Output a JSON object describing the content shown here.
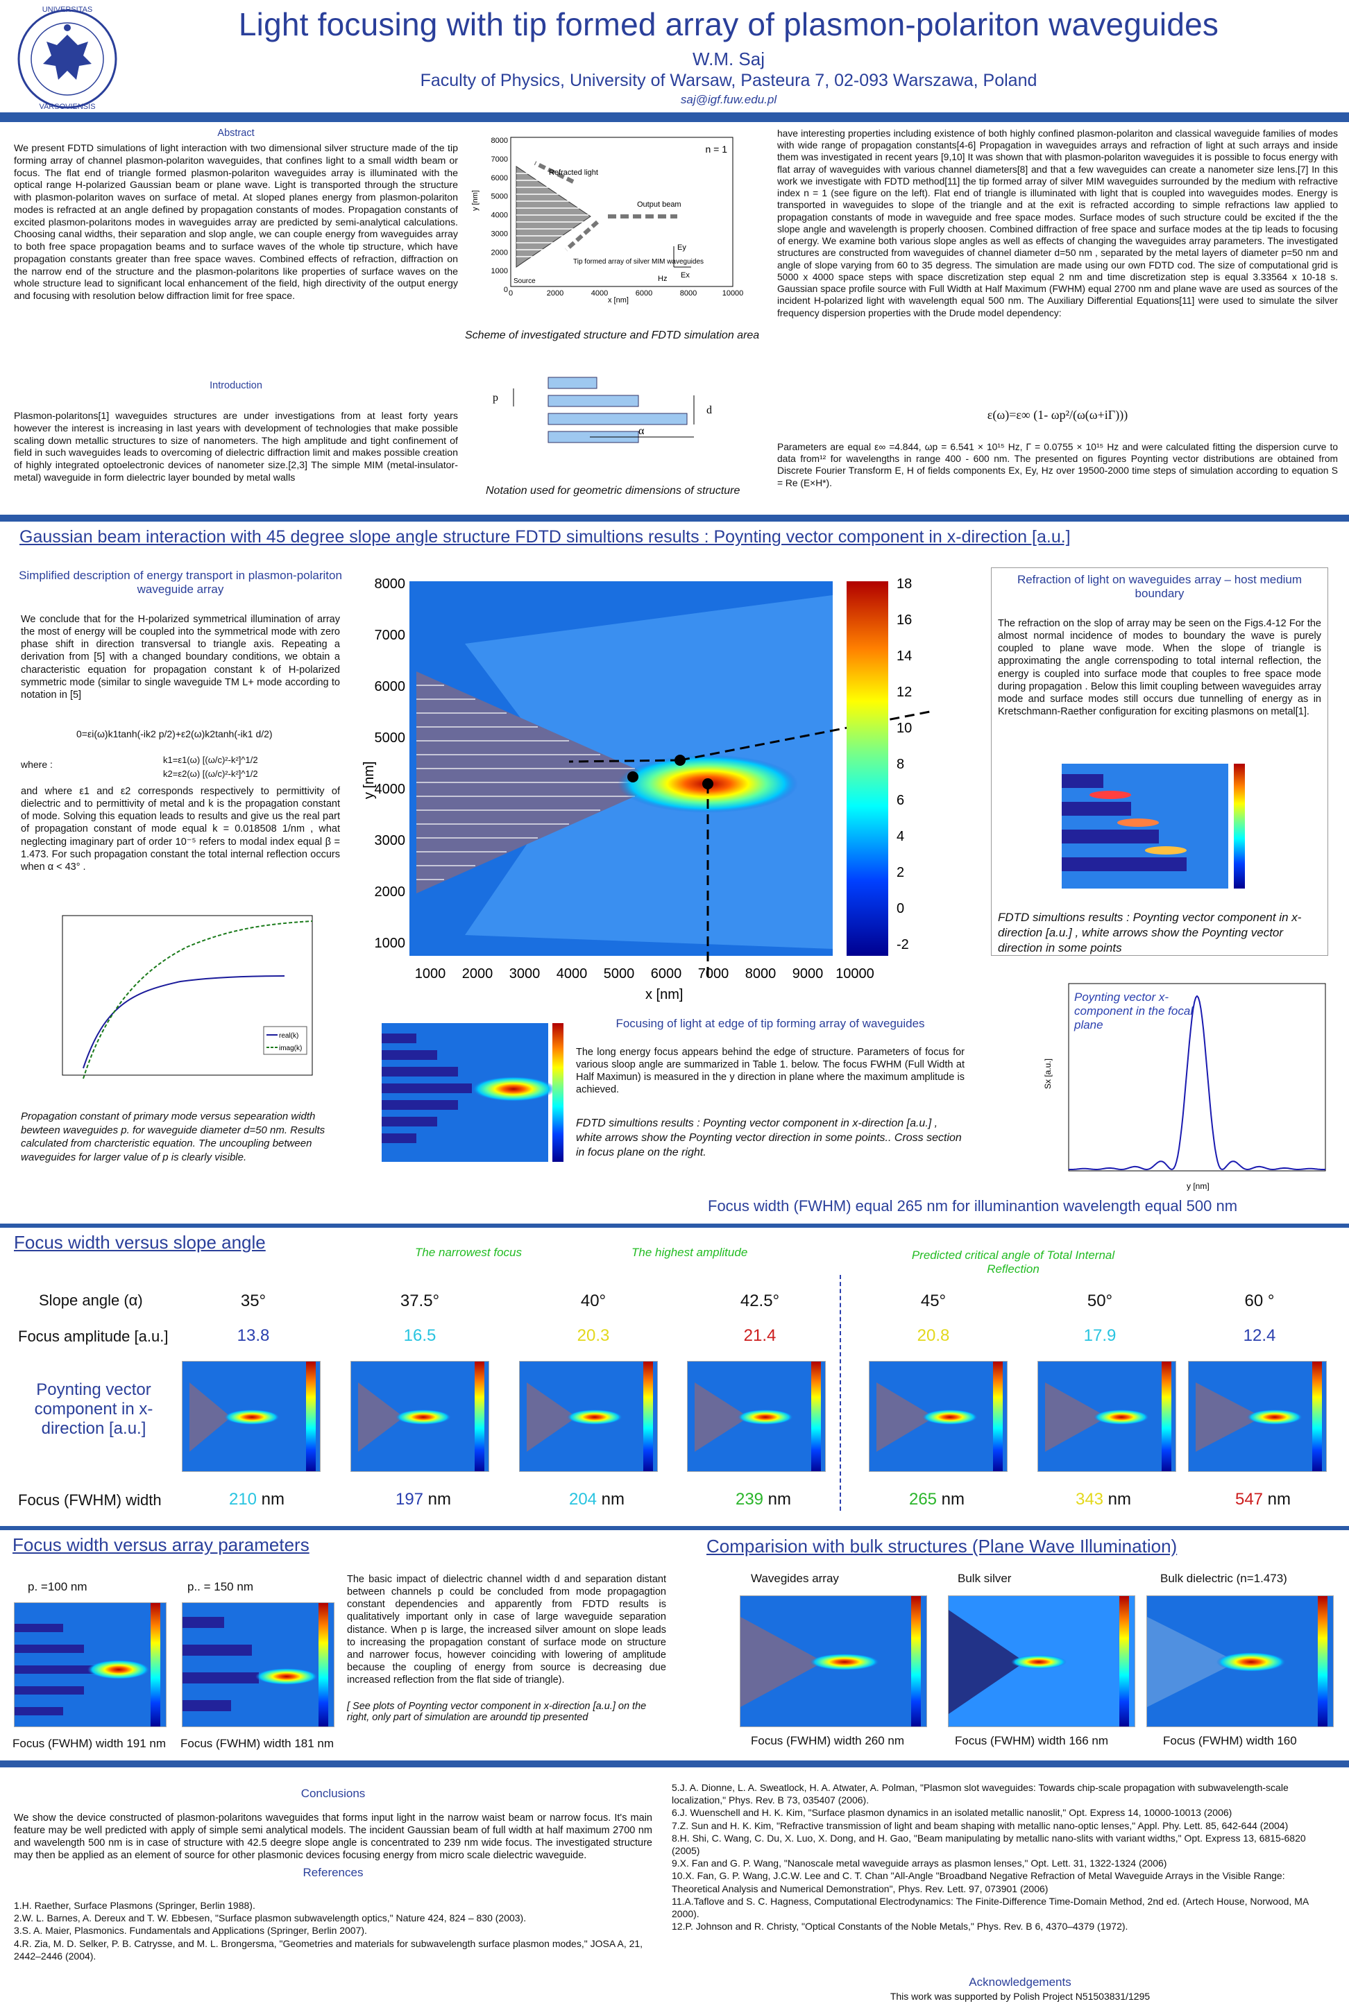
{
  "header": {
    "title": "Light focusing with tip formed array of plasmon-polariton waveguides",
    "author": "W.M. Saj",
    "affiliation": "Faculty of Physics, University of Warsaw, Pasteura 7, 02-093 Warszawa, Poland",
    "email": "saj@igf.fuw.edu.pl",
    "logo_text_top": "UNIVERSITAS",
    "logo_text_bottom": "VARSOVIENSIS"
  },
  "abstract": {
    "heading": "Abstract",
    "text": "We present FDTD simulations of light interaction with two dimensional silver structure made of the tip forming array of channel plasmon-polariton waveguides, that confines light to a small width beam or focus. The flat end of triangle formed plasmon-polariton waveguides array is illuminated with the optical range H-polarized Gaussian beam or plane wave. Light is transported through the structure with plasmon-polariton waves on surface of metal. At sloped planes energy from plasmon-polariton modes is refracted at an angle defined by propagation constants of modes. Propagation constants of excited plasmon-polaritons modes in waveguides array are predicted by semi-analytical calculations. Choosing canal widths, their separation and slop angle, we can couple energy from waveguides array to both free space propagation beams and to surface waves of the whole tip structure, which have propagation constants greater than free space waves. Combined effects of refraction, diffraction on the narrow end of the structure and the plasmon-polaritons like properties of surface waves on the whole structure lead to significant local enhancement of the field, high directivity of the output energy and focusing with resolution below diffraction limit for free space."
  },
  "introduction": {
    "heading": "Introduction",
    "text": "Plasmon-polaritons[1] waveguides structures are under investigations from at least forty years however the interest is increasing in last years with development of technologies that make possible scaling down metallic structures to size of nanometers. The high amplitude and tight confinement of field in such waveguides leads to overcoming of dielectric diffraction limit and makes possible creation of highly integrated optoelectronic devices of nanometer size.[2,3] The simple MIM (metal-insulator-metal) waveguide in form dielectric layer bounded by metal walls"
  },
  "scheme": {
    "n_label": "n = 1",
    "refracted": "Refracted light",
    "output": "Output beam",
    "tip_label": "Tip formed array of silver MIM waveguides",
    "source": "Source",
    "ey": "Ey",
    "hz": "Hz",
    "ex": "Ex",
    "ylabel": "y [nm]",
    "xlabel": "x [nm]",
    "yticks": [
      "8000",
      "7000",
      "6000",
      "5000",
      "4000",
      "3000",
      "2000",
      "1000",
      "0"
    ],
    "xticks": [
      "0",
      "2000",
      "4000",
      "6000",
      "8000",
      "10000"
    ],
    "caption": "Scheme of investigated structure and FDTD simulation area",
    "notation_caption": "Notation used for geometric dimensions of structure",
    "p": "p",
    "d": "d",
    "alpha": "α"
  },
  "right_intro": {
    "text": "have interesting properties including existence of both highly confined plasmon-polariton and classical waveguide families of modes with wide range of propagation constants[4-6] Propagation in waveguides arrays and refraction of light at such arrays and inside them was investigated in recent years [9,10] It was shown that with plasmon-polariton waveguides it is possible to focus energy with flat array of waveguides with various channel diameters[8] and that a few waveguides can create a nanometer size lens.[7] In this work we investigate with FDTD method[11] the tip formed array of silver MIM waveguides surrounded by the medium with refractive index n = 1 (see figure on the left). Flat end of triangle is illuminated with light that is coupled into waveguides modes. Energy is transported in waveguides to slope of the triangle and at the exit is refracted according to simple refractions law applied to propagation constants of mode in waveguide and free space modes. Surface modes of such structure could be excited if the the slope angle and wavelength is properly choosen. Combined diffraction of free space and surface modes at the tip leads to focusing of energy. We examine both various slope angles as well as effects of changing the waveguides array parameters. The investigated structures are constructed from waveguides of channel diameter d=50 nm , separated by the metal layers of diameter p=50 nm and angle of slope varying from 60 to 35 degress. The simulation are made using our own FDTD cod. The size of computational grid is 5000 x 4000 space steps with space discretization step equal 2 nm and time discretization step is equal 3.33564 x 10-18 s. Gaussian space profile source with Full Width at Half Maximum (FWHM) equal 2700 nm and plane wave are used as sources of the incident H-polarized light with wavelength equal 500 nm. The Auxiliary Differential Equations[11] were used to simulate the silver frequency dispersion properties with the Drude model dependency:",
    "equation": "ε(ω)=ε∞ (1- ωp²/(ω(ω+iΓ)))",
    "params": "Parameters are equal ε∞ =4.844, ωp = 6.541 × 10¹⁵ Hz, Γ = 0.0755 × 10¹⁵ Hz and were calculated fitting the dispersion curve to data from¹² for wavelengths in range 400 - 600 nm. The presented on figures Poynting vector distributions are obtained from Discrete Fourier Transform E, H of fields components Ex, Ey, Hz over 19500-2000 time steps of simulation according to equation S = Re (E×H*)."
  },
  "section2": {
    "heading": "Gaussian beam interaction with 45 degree slope angle structure FDTD simultions results : Poynting vector component in x-direction [a.u.]",
    "simpl_heading": "Simplified description of energy transport in plasmon-polariton waveguide array",
    "simpl_text1": "We conclude that for the H-polarized symmetrical illumination of array the most of energy will be coupled into the symmetrical mode with zero phase shift in direction transversal to triangle axis. Repeating a derivation from [5] with a changed boundary conditions, we obtain a characteristic equation for propagation constant k of H-polarized symmetric mode (similar to single waveguide TM L+ mode according to notation in [5]",
    "eq1": "0=εi(ω)k1tanh(-ik2 p/2)+ε2(ω)k2tanh(-ik1 d/2)",
    "where": "where :",
    "eq2": "k1=ε1(ω) [(ω/c)²-k²]^1/2",
    "eq3": "k2=ε2(ω) [(ω/c)²-k²]^1/2",
    "simpl_text2": "and where ε1 and ε2 corresponds respectively to permittivity of dielectric and to permittivity of metal and k is the propagation constant of mode. Solving this equation leads to results and give us the real part of propagation constant of mode equal k = 0.018508 1/nm , what neglecting imaginary part of order 10⁻⁵ refers to modal index equal β = 1.473. For such propagation constant the total internal reflection occurs when α < 43° .",
    "prop_caption": "Propagation constant of primary mode versus sepearation width bewteen waveguides p. for waveguide diameter d=50 nm. Results calculated from charcteristic equation. The uncoupling between waveguides for larger value of p is clearly visible.",
    "legend_real": "real(k)",
    "legend_imag": "imag(k)",
    "main_ylabel": "y [nm]",
    "main_xlabel": "x [nm]",
    "main_yticks": [
      "8000",
      "7000",
      "6000",
      "5000",
      "4000",
      "3000",
      "2000",
      "1000"
    ],
    "main_xticks": [
      "1000",
      "2000",
      "3000",
      "4000",
      "5000",
      "6000",
      "7000",
      "8000",
      "9000",
      "10000"
    ],
    "cbar_ticks": [
      "18",
      "16",
      "14",
      "12",
      "10",
      "8",
      "6",
      "4",
      "2",
      "0",
      "-2"
    ],
    "refr_heading": "Refraction of light on waveguides array – host medium boundary",
    "refr_text": "The refraction on the slop of array may be seen on the Figs.4-12 For the almost normal incidence of modes to boundary the wave is purely coupled to plane wave mode. When the slope of triangle is approximating the angle correnspoding to total internal reflection, the energy is coupled into surface mode that couples to free space mode during propagation . Below this limit coupling between waveguides array mode and surface modes still occurs due tunnelling of energy as in Kretschmann-Raether configuration for exciting plasmons on metal[1].",
    "refr_caption": "FDTD simultions results : Poynting vector component in x-direction [a.u.] , white arrows show the Poynting vector direction in some points",
    "focus_heading": "Focusing of light at edge of tip forming array of waveguides",
    "focus_text": "The long energy focus appears behind the edge of structure. Parameters of focus for various sloop angle are summarized in Table 1. below. The focus FWHM (Full Width at Half Maximun) is measured in the y direction in plane where the maximum amplitude is achieved.",
    "focus_caption": "FDTD simultions results : Poynting vector component in x-direction [a.u.] , white arrows show the Poynting vector direction in some points.. Cross section in focus plane on the right.",
    "profile_label": "Poynting vector x-component in the focal plane",
    "profile_ylabel": "Sx [a.u.]",
    "profile_xlabel": "y [nm]",
    "fwhm_line": "Focus width (FWHM) equal 265 nm for illuminantion wavelength equal 500 nm"
  },
  "slope_table": {
    "heading": "Focus width versus slope angle",
    "narrowest": "The narrowest focus",
    "highest": "The highest amplitude",
    "critical": "Predicted critical angle of Total Internal Reflection",
    "row1_label": "Slope angle (α)",
    "row2_label": "Focus amplitude [a.u.]",
    "row3_label": "Poynting vector component in x-direction [a.u.]",
    "row4_label": "Focus (FWHM) width",
    "columns": [
      {
        "angle": "35°",
        "amp": "13.8",
        "amp_color": "#2a3fae",
        "fwhm": "210",
        "fwhm_color": "#29c4e0"
      },
      {
        "angle": "37.5°",
        "amp": "16.5",
        "amp_color": "#29c4e0",
        "fwhm": "197",
        "fwhm_color": "#2a3fae"
      },
      {
        "angle": "40°",
        "amp": "20.3",
        "amp_color": "#e3d81c",
        "fwhm": "204",
        "fwhm_color": "#29c4e0"
      },
      {
        "angle": "42.5°",
        "amp": "21.4",
        "amp_color": "#cc1d1d",
        "fwhm": "239",
        "fwhm_color": "#2bb52b"
      },
      {
        "angle": "45°",
        "amp": "20.8",
        "amp_color": "#e3d81c",
        "fwhm": "265",
        "fwhm_color": "#2bb52b"
      },
      {
        "angle": "50°",
        "amp": "17.9",
        "amp_color": "#29c4e0",
        "fwhm": "343",
        "fwhm_color": "#e3d81c"
      },
      {
        "angle": "60 °",
        "amp": "12.4",
        "amp_color": "#2a3fae",
        "fwhm": "547",
        "fwhm_color": "#cc1d1d"
      }
    ],
    "unit": "nm"
  },
  "array_params": {
    "heading": "Focus width versus array parameters",
    "p100": "p. =100 nm",
    "p150": "p.. = 150 nm",
    "fwhm100": "Focus (FWHM) width 191 nm",
    "fwhm150": "Focus (FWHM) width 181 nm",
    "text": "The basic impact of dielectric channel width d and separation distant between channels p could be concluded from mode propagagtion constant dependencies and apparently from FDTD results is qualitatively important only in case of large waveguide separation distance. When p is large, the increased silver amount on slope leads to increasing the propagation constant of surface mode on structure and narrower focus, however coinciding with lowering of amplitude because the coupling of energy from source is decreasing due increased reflection from the flat side of triangle).",
    "note": "[ See plots of Poynting vector component in x-direction [a.u.] on the right, only part of simulation are aroundd tip presented"
  },
  "bulk": {
    "heading": "Comparision with bulk structures (Plane Wave Illumination)",
    "t1": "Wavegides array",
    "t2": "Bulk silver",
    "t3": "Bulk dielectric (n=1.473)",
    "f1": "Focus (FWHM) width 260 nm",
    "f2": "Focus (FWHM) width 166 nm",
    "f3": "Focus (FWHM) width 160"
  },
  "conclusions": {
    "heading": "Conclusions",
    "text": "We show the device constructed of plasmon-polaritons waveguides that forms input light in the narrow waist beam or narrow focus. It's main feature may be well predicted with apply of simple semi analytical models. The incident Gaussian beam of full width at half maximum 2700 nm and wavelength 500 nm is in case of structure with 42.5 deegre slope angle is concentrated to 239 nm wide focus. The investigated structure may then be applied as an element of source for other plasmonic devices focusing energy from micro scale dielectric waveguide."
  },
  "references": {
    "heading": "References",
    "left": [
      "1.H. Raether, Surface Plasmons (Springer, Berlin 1988).",
      "2.W. L. Barnes, A. Dereux and T. W. Ebbesen, \"Surface plasmon subwavelength optics,\" Nature 424, 824 – 830 (2003).",
      "3.S. A. Maier, Plasmonics. Fundamentals and Applications (Springer, Berlin 2007).",
      "4.R. Zia, M. D. Selker, P. B. Catrysse, and M. L. Brongersma, \"Geometries and materials for subwavelength surface plasmon modes,\" JOSA A, 21, 2442–2446 (2004)."
    ],
    "right": [
      "5.J. A. Dionne, L. A. Sweatlock, H. A. Atwater, A. Polman, \"Plasmon slot waveguides: Towards chip-scale propagation with subwavelength-scale localization,\" Phys. Rev. B 73, 035407 (2006).",
      "6.J. Wuenschell and H. K. Kim, \"Surface plasmon dynamics in an isolated metallic nanoslit,\" Opt. Express 14, 10000-10013 (2006)",
      "7.Z. Sun and H. K. Kim, \"Refractive transmission of light and beam shaping with metallic nano-optic lenses,\" Appl. Phy. Lett. 85, 642-644 (2004)",
      "8.H. Shi, C. Wang, C. Du, X. Luo, X. Dong, and H. Gao, \"Beam manipulating by metallic nano-slits with variant widths,\" Opt. Express 13, 6815-6820 (2005)",
      "9.X. Fan and G. P. Wang, \"Nanoscale metal waveguide arrays as plasmon lenses,\" Opt. Lett. 31, 1322-1324 (2006)",
      "10.X. Fan, G. P. Wang, J.C.W. Lee and C. T. Chan \"All-Angle \"Broadband Negative Refraction of Metal Waveguide Arrays in the Visible Range: Theoretical Analysis and Numerical Demonstration\", Phys. Rev. Lett. 97, 073901 (2006)",
      "11.A.Taflove and S. C. Hagness, Computational Electrodynamics: The Finite-Difference Time-Domain Method, 2nd ed. (Artech House, Norwood, MA 2000).",
      "12.P. Johnson and R. Christy, \"Optical Constants of the Noble Metals,\" Phys. Rev. B 6, 4370–4379 (1972)."
    ],
    "ack_heading": "Acknowledgements",
    "ack_text": "This work was supported by Polish Project N51503831/1295"
  },
  "colors": {
    "title": "#2a3f9a",
    "rule": "#2b5aa8",
    "green_note": "#22bb22"
  }
}
